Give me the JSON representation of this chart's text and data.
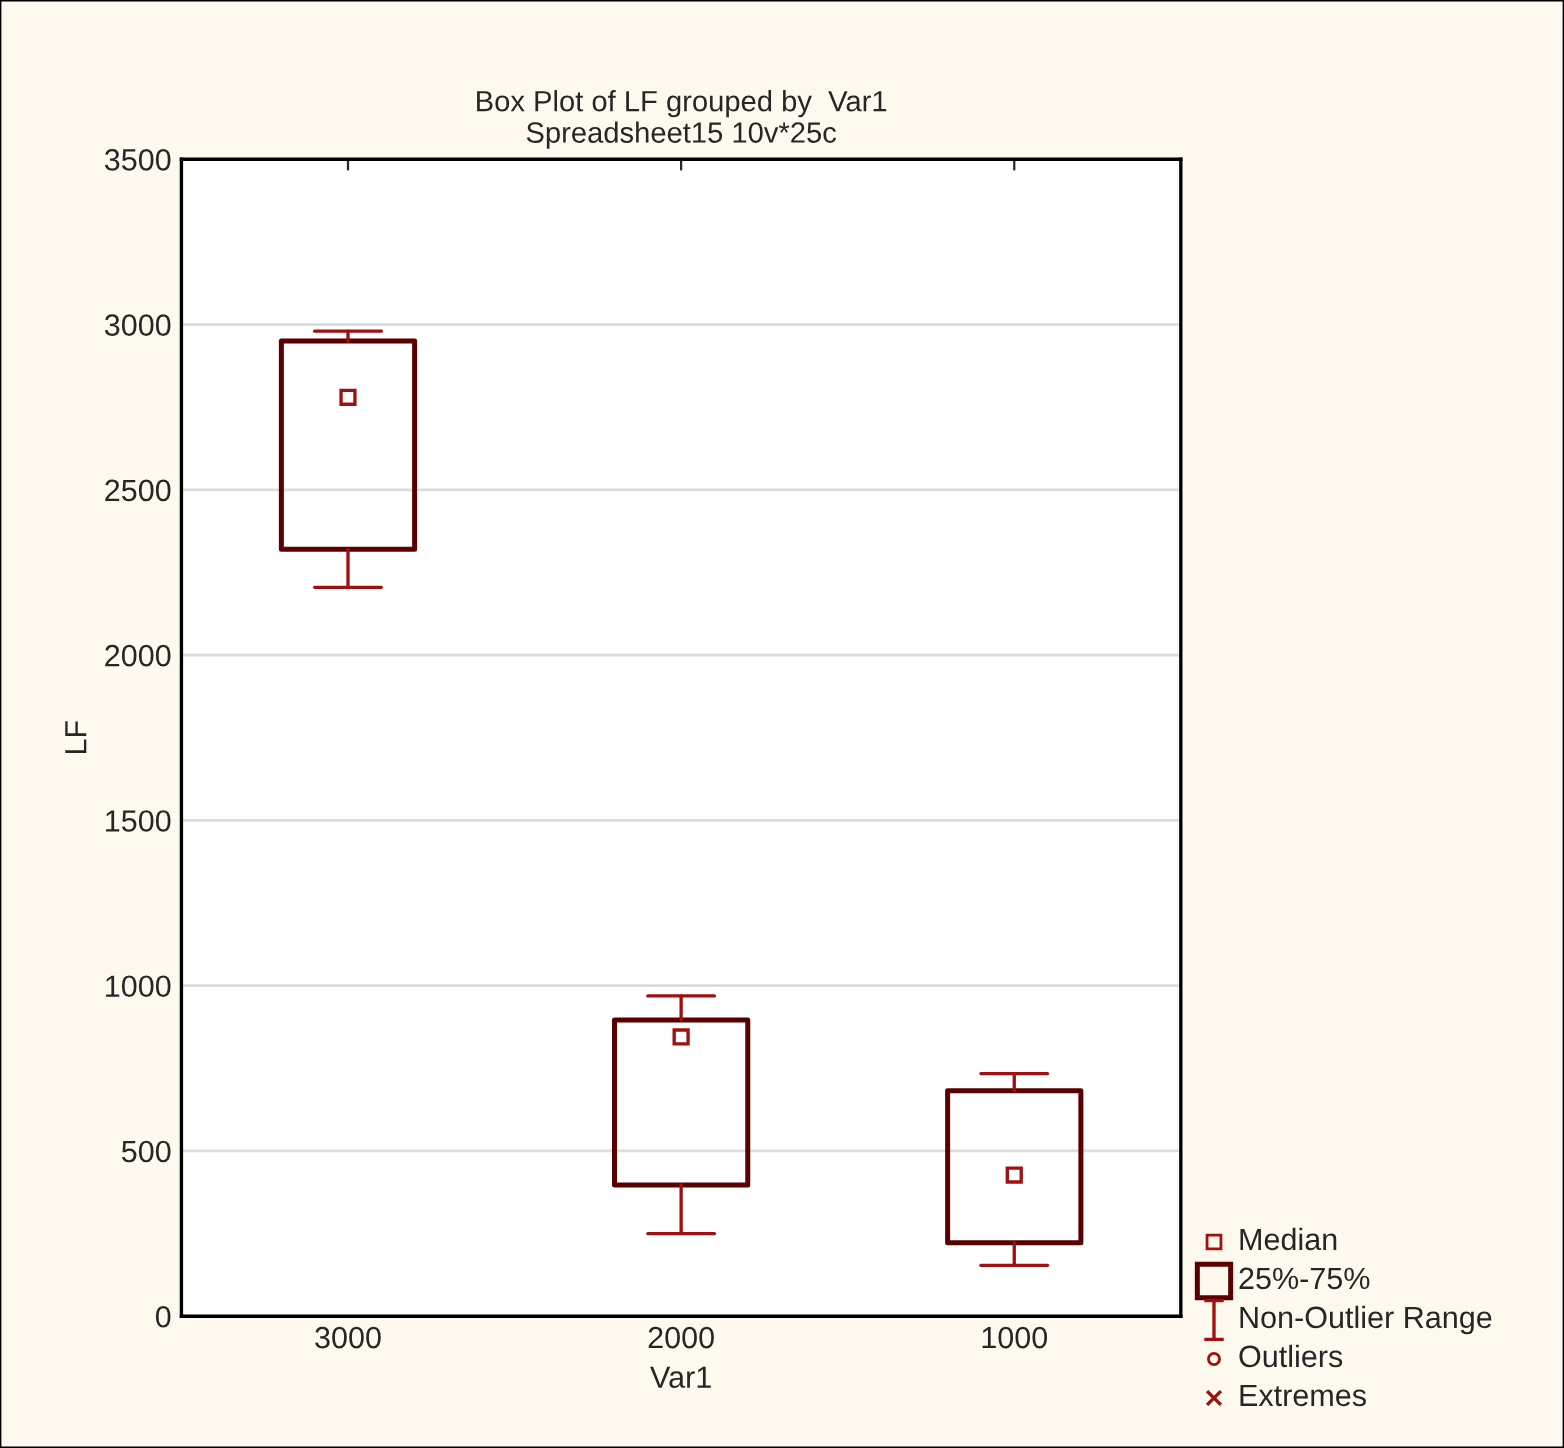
{
  "chart_data": {
    "type": "box",
    "title": "Box Plot of LF grouped by  Var1",
    "subtitle": "Spreadsheet15 10v*25c",
    "xlabel": "Var1",
    "ylabel": "LF",
    "categories": [
      "3000",
      "2000",
      "1000"
    ],
    "boxes": [
      {
        "low": 2205,
        "q1": 2320,
        "median": 2780,
        "q3": 2950,
        "high": 2980
      },
      {
        "low": 250,
        "q1": 397,
        "median": 845,
        "q3": 896,
        "high": 969
      },
      {
        "low": 154,
        "q1": 222,
        "median": 427,
        "q3": 682,
        "high": 734
      }
    ],
    "ylim": [
      0,
      3500
    ],
    "yticks": [
      0,
      500,
      1000,
      1500,
      2000,
      2500,
      3000,
      3500
    ],
    "grid": "y",
    "annotations": [
      "Median",
      "25%-75%",
      "Non-Outlier Range",
      "Outliers",
      "Extremes"
    ]
  }
}
